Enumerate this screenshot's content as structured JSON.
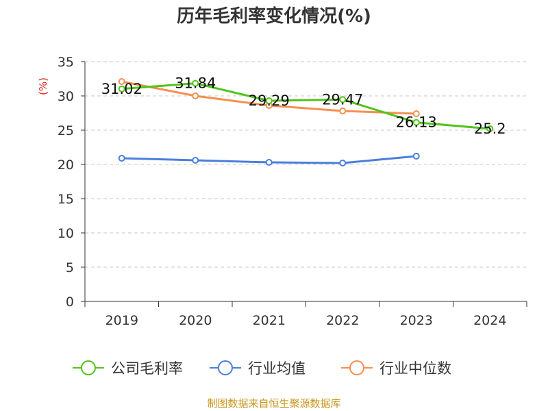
{
  "chart_data": {
    "type": "line",
    "title": "历年毛利率变化情况(%)",
    "ylabel": "(%)",
    "xlabel": "",
    "categories": [
      "2019",
      "2020",
      "2021",
      "2022",
      "2023",
      "2024"
    ],
    "ylim": [
      0,
      35
    ],
    "yticks": [
      0,
      5,
      10,
      15,
      20,
      25,
      30,
      35
    ],
    "grid": true,
    "legend_position": "bottom",
    "series": [
      {
        "name": "公司毛利率",
        "color": "#52c41a",
        "values": [
          31.02,
          31.84,
          29.29,
          29.47,
          26.13,
          25.2
        ],
        "labels": [
          "31.02",
          "31.84",
          "29.29",
          "29.47",
          "26.13",
          "25.2"
        ]
      },
      {
        "name": "行业均值",
        "color": "#4a7fdc",
        "values": [
          20.9,
          20.6,
          20.3,
          20.2,
          21.2,
          null
        ],
        "labels": []
      },
      {
        "name": "行业中位数",
        "color": "#f78e50",
        "values": [
          32.1,
          30.0,
          28.6,
          27.8,
          27.4,
          null
        ],
        "labels": []
      }
    ]
  },
  "footer": {
    "source": "制图数据来自恒生聚源数据库"
  }
}
